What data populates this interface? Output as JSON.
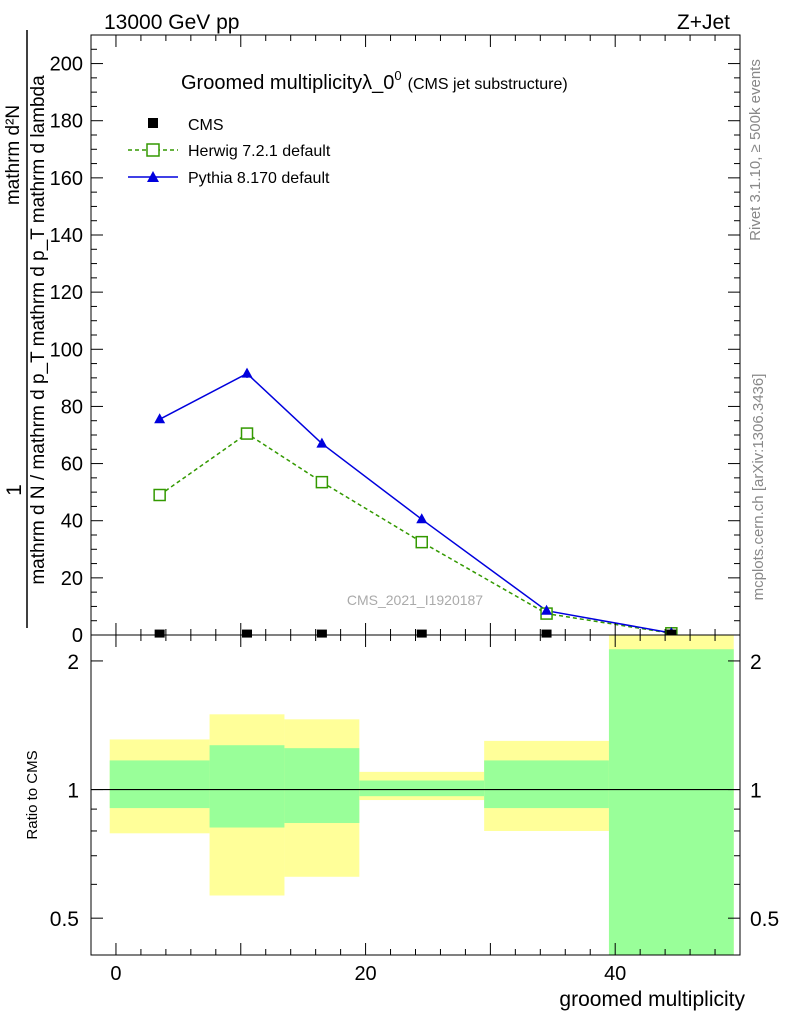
{
  "header": {
    "energy_label": "13000 GeV pp",
    "process_label": "Z+Jet"
  },
  "side_labels": {
    "rivet": "Rivet 3.1.10, ≥ 500k events",
    "mcplots": "mcplots.cern.ch [arXiv:1306.3436]"
  },
  "colors": {
    "cms": "#000000",
    "herwig": "#339900",
    "pythia": "#0000dd",
    "band_outer": "#ffff99",
    "band_inner": "#99ff99"
  },
  "chart_data": [
    {
      "type": "line",
      "title": "Groomed multiplicityλ_0",
      "title_sup": "0",
      "title_note": "(CMS jet substructure)",
      "ylabel_numerator": "mathrm d²N",
      "ylabel_denominator": "mathrm d N / mathrm d p_T mathrm d p_T mathrm d lambda",
      "ylabel_prefix": "1",
      "watermark": "CMS_2021_I1920187",
      "xlim": [
        -2,
        50
      ],
      "ylim": [
        0,
        210
      ],
      "yticks": [
        0,
        20,
        40,
        60,
        80,
        100,
        120,
        140,
        160,
        180,
        200
      ],
      "x": [
        3.5,
        10.5,
        16.5,
        24.5,
        34.5,
        44.5
      ],
      "series": [
        {
          "name": "CMS",
          "marker": "square-filled",
          "values": [
            0.5,
            0.5,
            0.5,
            0.5,
            0.5,
            0.5
          ]
        },
        {
          "name": "Herwig 7.2.1 default",
          "marker": "square-open",
          "dashed": true,
          "values": [
            49,
            70.5,
            53.5,
            32.5,
            7.5,
            0.6
          ]
        },
        {
          "name": "Pythia 8.170 default",
          "marker": "triangle",
          "dashed": false,
          "values": [
            75.5,
            91.5,
            67,
            40.5,
            8.5,
            0.7
          ],
          "errors": [
            0.8,
            1.5,
            1.2,
            0.8,
            0.4,
            0.2
          ]
        }
      ]
    },
    {
      "type": "area",
      "ylabel": "Ratio to CMS",
      "xlabel": "groomed multiplicity",
      "xlim": [
        -2,
        50
      ],
      "ylim": [
        0.41,
        2.3
      ],
      "yscale": "log",
      "yticks": [
        0.5,
        1,
        2
      ],
      "ytick_labels": [
        "0.5",
        "1",
        "2"
      ],
      "xticks": [
        0,
        20,
        40
      ],
      "xtick_labels": [
        "0",
        "20",
        "40"
      ],
      "reference_line": 1,
      "bins": [
        {
          "x_low": -0.5,
          "x_high": 7.5,
          "outer": [
            0.79,
            1.31
          ],
          "inner": [
            0.905,
            1.17
          ]
        },
        {
          "x_low": 7.5,
          "x_high": 13.5,
          "outer": [
            0.565,
            1.5
          ],
          "inner": [
            0.815,
            1.27
          ]
        },
        {
          "x_low": 13.5,
          "x_high": 19.5,
          "outer": [
            0.625,
            1.46
          ],
          "inner": [
            0.835,
            1.25
          ]
        },
        {
          "x_low": 19.5,
          "x_high": 29.5,
          "outer": [
            0.945,
            1.1
          ],
          "inner": [
            0.965,
            1.05
          ]
        },
        {
          "x_low": 29.5,
          "x_high": 39.5,
          "outer": [
            0.8,
            1.3
          ],
          "inner": [
            0.905,
            1.17
          ]
        },
        {
          "x_low": 39.5,
          "x_high": 49.5,
          "outer": [
            0.41,
            2.3
          ],
          "inner": [
            0.41,
            2.13
          ]
        }
      ]
    }
  ]
}
